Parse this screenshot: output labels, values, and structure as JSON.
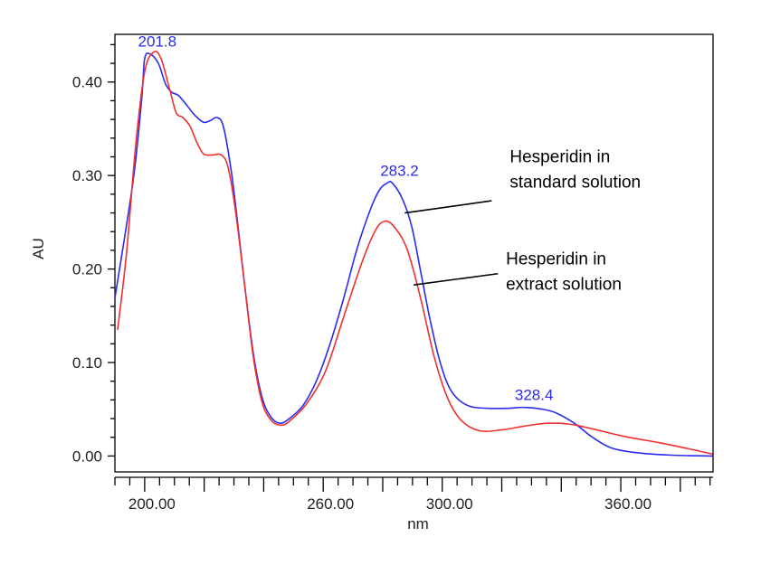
{
  "chart_data": {
    "type": "line",
    "title": "",
    "xlabel": "nm",
    "ylabel": "AU",
    "xlim": [
      190,
      391
    ],
    "ylim": [
      -0.017,
      0.451
    ],
    "x_ticks": [
      200,
      260,
      300,
      360
    ],
    "x_tick_labels": [
      "200.00",
      "260.00",
      "300.00",
      "360.00"
    ],
    "x_major_tick_step": 20,
    "x_minor_tick_step": 5,
    "y_ticks": [
      0.0,
      0.1,
      0.2,
      0.3,
      0.4
    ],
    "y_tick_labels": [
      "0.00",
      "0.10",
      "0.20",
      "0.30",
      "0.40"
    ],
    "y_minor_tick_step": 0.02,
    "grid": false,
    "series": [
      {
        "name": "Hesperidin in standard solution",
        "color": "#2a2af0",
        "x": [
          190,
          196.1,
          199,
          200,
          201.8,
          204.6,
          207,
          209.1,
          211.2,
          213.7,
          216.7,
          219.8,
          222.2,
          224.3,
          226.4,
          228.9,
          231,
          233.4,
          236.5,
          239.5,
          242.6,
          245.6,
          248.6,
          253.2,
          257.8,
          262.3,
          266.9,
          271.4,
          276,
          279,
          281.5,
          283.2,
          286.6,
          289.7,
          292.7,
          295.7,
          298.8,
          301.8,
          304.9,
          309.4,
          315.5,
          321.6,
          327.7,
          333.7,
          338.3,
          344.4,
          350.5,
          356.5,
          364.1,
          376.3,
          390.9
        ],
        "y": [
          0.169,
          0.294,
          0.382,
          0.425,
          0.43,
          0.42,
          0.398,
          0.389,
          0.386,
          0.377,
          0.365,
          0.357,
          0.359,
          0.362,
          0.353,
          0.309,
          0.256,
          0.188,
          0.11,
          0.062,
          0.041,
          0.035,
          0.04,
          0.054,
          0.081,
          0.12,
          0.169,
          0.222,
          0.265,
          0.285,
          0.292,
          0.292,
          0.275,
          0.246,
          0.198,
          0.149,
          0.106,
          0.077,
          0.062,
          0.053,
          0.051,
          0.051,
          0.052,
          0.05,
          0.046,
          0.035,
          0.02,
          0.009,
          0.004,
          0.001,
          0.0
        ]
      },
      {
        "name": "Hesperidin in extract solution",
        "color": "#f03030",
        "x": [
          190.9,
          193.9,
          197,
          200,
          203,
          205.5,
          208.5,
          210.6,
          212.8,
          215.2,
          217.6,
          219.8,
          222.8,
          225.8,
          228,
          230.4,
          233.4,
          236.5,
          239.5,
          242.6,
          245.6,
          248.6,
          254.7,
          260.8,
          266.9,
          273,
          277.5,
          280.5,
          283.6,
          288.1,
          292.7,
          297.3,
          301.8,
          306.4,
          312.5,
          320.1,
          327.7,
          335.3,
          342.9,
          350.5,
          361.1,
          373.3,
          382.4,
          390.9
        ],
        "y": [
          0.135,
          0.217,
          0.333,
          0.411,
          0.432,
          0.425,
          0.391,
          0.367,
          0.362,
          0.353,
          0.335,
          0.323,
          0.322,
          0.322,
          0.309,
          0.265,
          0.188,
          0.106,
          0.057,
          0.038,
          0.033,
          0.037,
          0.057,
          0.091,
          0.149,
          0.207,
          0.241,
          0.251,
          0.246,
          0.222,
          0.169,
          0.106,
          0.062,
          0.038,
          0.027,
          0.028,
          0.032,
          0.035,
          0.034,
          0.029,
          0.021,
          0.014,
          0.008,
          0.002
        ]
      }
    ],
    "peak_labels": [
      {
        "text": "201.8",
        "x": 201.8,
        "y": 0.43,
        "color": "#2a2af0"
      },
      {
        "text": "283.2",
        "x": 283.2,
        "y": 0.292,
        "color": "#2a2af0"
      },
      {
        "text": "328.4",
        "x": 328.4,
        "y": 0.052,
        "color": "#2a2af0"
      }
    ],
    "annotations": [
      {
        "lines": [
          "Hesperidin in",
          "standard solution"
        ],
        "from": [
          287.4,
          0.26
        ],
        "to": [
          316.6,
          0.273
        ],
        "text_at": [
          322.7,
          0.314
        ]
      },
      {
        "lines": [
          "Hesperidin in",
          "extract solution"
        ],
        "from": [
          290.4,
          0.183
        ],
        "to": [
          318.7,
          0.195
        ],
        "text_at": [
          321.4,
          0.205
        ]
      }
    ]
  }
}
